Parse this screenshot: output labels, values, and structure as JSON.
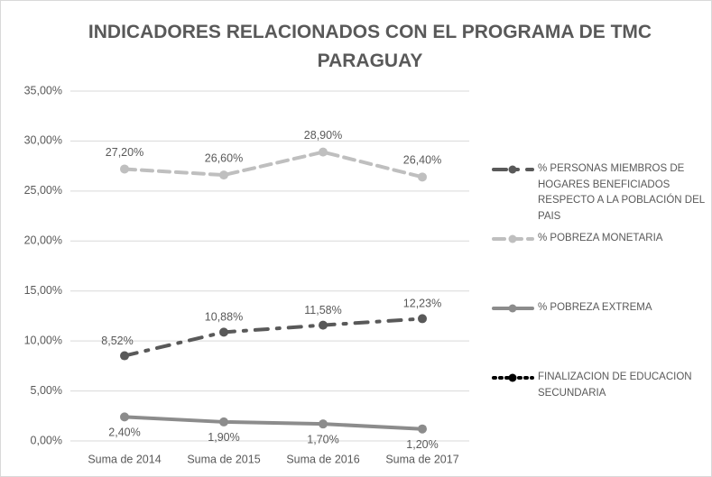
{
  "chart_data": {
    "type": "line",
    "title": "INDICADORES RELACIONADOS CON EL PROGRAMA DE TMC PARAGUAY",
    "categories": [
      "Suma de 2014",
      "Suma de 2015",
      "Suma de 2016",
      "Suma de 2017"
    ],
    "series": [
      {
        "name": "% PERSONAS MIEMBROS DE HOGARES BENEFICIADOS RESPECTO A LA POBLACIÓN DEL PAIS",
        "color": "#595959",
        "line_style": "dash-dot",
        "values": [
          8.52,
          10.88,
          11.58,
          12.23
        ],
        "value_labels": [
          "8,52%",
          "10,88%",
          "11,58%",
          "12,23%"
        ]
      },
      {
        "name": "% POBREZA MONETARIA",
        "color": "#bfbfbf",
        "line_style": "dash",
        "values": [
          27.2,
          26.6,
          28.9,
          26.4
        ],
        "value_labels": [
          "27,20%",
          "26,60%",
          "28,90%",
          "26,40%"
        ]
      },
      {
        "name": "% POBREZA EXTREMA",
        "color": "#8c8c8c",
        "line_style": "solid",
        "values": [
          2.4,
          1.9,
          1.7,
          1.2
        ],
        "value_labels": [
          "2,40%",
          "1,90%",
          "1,70%",
          "1,20%"
        ]
      },
      {
        "name": "FINALIZACION DE EDUCACION SECUNDARIA",
        "color": "#000000",
        "line_style": "dot",
        "values": [
          null,
          null,
          null,
          null
        ]
      }
    ],
    "ylim": [
      0,
      35
    ],
    "yticks": [
      {
        "value": 0,
        "label": "0,00%"
      },
      {
        "value": 5,
        "label": "5,00%"
      },
      {
        "value": 10,
        "label": "10,00%"
      },
      {
        "value": 15,
        "label": "15,00%"
      },
      {
        "value": 20,
        "label": "20,00%"
      },
      {
        "value": 25,
        "label": "25,00%"
      },
      {
        "value": 30,
        "label": "30,00%"
      },
      {
        "value": 35,
        "label": "35,00%"
      }
    ],
    "grid": true,
    "legend": "right"
  }
}
